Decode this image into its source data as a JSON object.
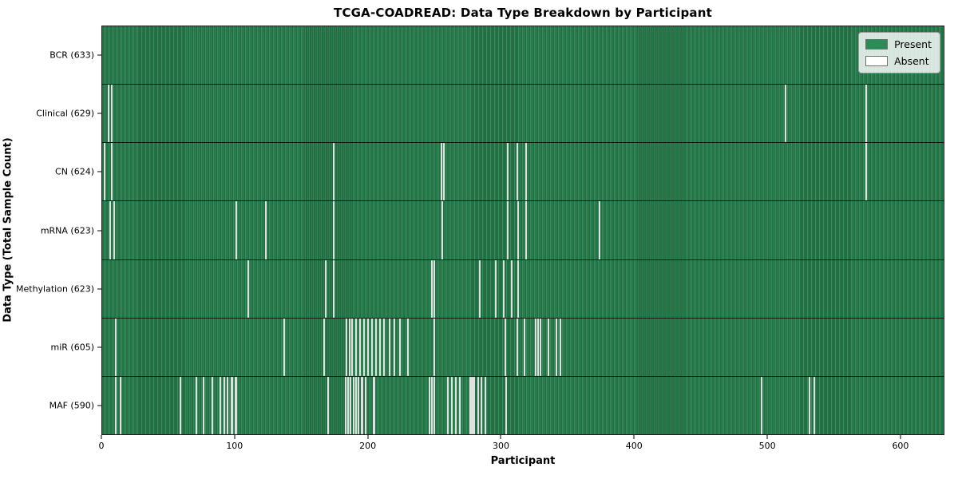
{
  "title": "TCGA-COADREAD: Data Type Breakdown by Participant",
  "axes": {
    "xlabel": "Participant",
    "ylabel": "Data Type (Total Sample Count)",
    "x_ticks": [
      0,
      100,
      200,
      300,
      400,
      500,
      600
    ],
    "x_range": [
      0,
      633
    ]
  },
  "legend": {
    "items": [
      {
        "label": "Present",
        "color": "#2e8b57"
      },
      {
        "label": "Absent",
        "color": "#ffffff"
      }
    ]
  },
  "chart_data": {
    "type": "heatmap",
    "title": "TCGA-COADREAD: Data Type Breakdown by Participant",
    "xlabel": "Participant",
    "ylabel": "Data Type (Total Sample Count)",
    "n_participants": 633,
    "present_color": "#2e8b57",
    "absent_color": "#ffffff",
    "legend_position": "upper right",
    "rows": [
      {
        "label": "BCR (633)",
        "data_type": "BCR",
        "total_samples": 633,
        "absent_participants": []
      },
      {
        "label": "Clinical (629)",
        "data_type": "Clinical",
        "total_samples": 629,
        "absent_participants": [
          5,
          7,
          514,
          575
        ]
      },
      {
        "label": "CN (624)",
        "data_type": "CN",
        "total_samples": 624,
        "absent_participants": [
          2,
          7,
          174,
          255,
          257,
          305,
          312,
          319,
          575
        ]
      },
      {
        "label": "mRNA (623)",
        "data_type": "mRNA",
        "total_samples": 623,
        "absent_participants": [
          6,
          9,
          101,
          123,
          174,
          256,
          305,
          313,
          319,
          374
        ]
      },
      {
        "label": "Methylation (623)",
        "data_type": "Methylation",
        "total_samples": 623,
        "absent_participants": [
          110,
          168,
          174,
          248,
          250,
          284,
          296,
          302,
          308,
          313
        ]
      },
      {
        "label": "miR (605)",
        "data_type": "miR",
        "total_samples": 605,
        "absent_participants": [
          10,
          137,
          167,
          184,
          186,
          188,
          191,
          194,
          197,
          200,
          203,
          206,
          209,
          212,
          216,
          220,
          224,
          230,
          250,
          303,
          312,
          318,
          326,
          328,
          330,
          336,
          342,
          345
        ]
      },
      {
        "label": "MAF (590)",
        "data_type": "MAF",
        "total_samples": 590,
        "absent_participants": [
          10,
          14,
          59,
          71,
          76,
          83,
          89,
          92,
          94,
          97,
          98,
          100,
          101,
          170,
          183,
          185,
          187,
          189,
          191,
          193,
          195,
          196,
          198,
          204,
          205,
          246,
          248,
          250,
          260,
          263,
          266,
          269,
          277,
          278,
          279,
          280,
          283,
          285,
          288,
          304,
          496,
          532,
          536
        ]
      }
    ]
  }
}
